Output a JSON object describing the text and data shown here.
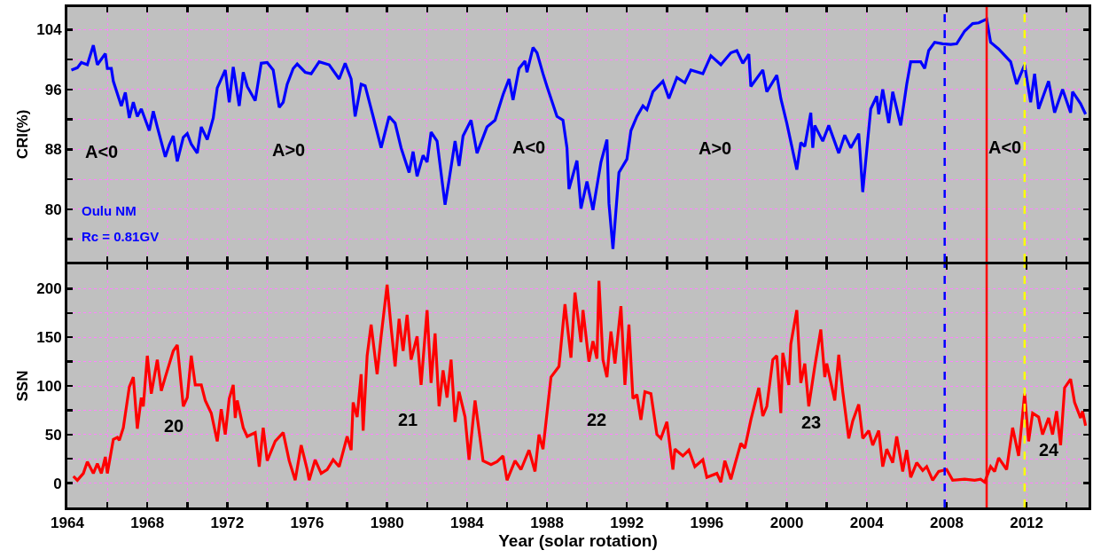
{
  "chart_data": [
    {
      "type": "line",
      "ylabel": "CRI(%)",
      "color": "#0000ff",
      "tick_labels": "y",
      "grid": true,
      "xlim": [
        1964,
        2015.1
      ],
      "ylim": [
        73,
        107
      ],
      "xticks": [
        1964,
        {
          "value": 1966,
          "label": null
        },
        1968,
        {
          "value": 1970,
          "label": null
        },
        1972,
        {
          "value": 1974,
          "label": null
        },
        1976,
        {
          "value": 1978,
          "label": null
        },
        1980,
        {
          "value": 1982,
          "label": null
        },
        1984,
        {
          "value": 1986,
          "label": null
        },
        1988,
        {
          "value": 1990,
          "label": null
        },
        1992,
        {
          "value": 1994,
          "label": null
        },
        1996,
        {
          "value": 1998,
          "label": null
        },
        2000,
        {
          "value": 2002,
          "label": null
        },
        2004,
        {
          "value": 2006,
          "label": null
        },
        2008,
        {
          "value": 2010,
          "label": null
        },
        2012,
        {
          "value": 2014,
          "label": null
        }
      ],
      "yticks": [
        {
          "value": 76,
          "label": null
        },
        80,
        {
          "value": 84,
          "label": null
        },
        88,
        {
          "value": 92,
          "label": null
        },
        96,
        {
          "value": 100,
          "label": null
        },
        104
      ],
      "x": [
        1964.2,
        1964.5,
        1964.7,
        1965.0,
        1965.3,
        1965.5,
        1965.9,
        1966.0,
        1966.2,
        1966.3,
        1966.7,
        1966.9,
        1967.1,
        1967.3,
        1967.5,
        1967.7,
        1968.1,
        1968.3,
        1968.5,
        1968.9,
        1969.1,
        1969.3,
        1969.5,
        1969.8,
        1970.0,
        1970.2,
        1970.5,
        1970.7,
        1971.0,
        1971.3,
        1971.5,
        1971.9,
        1972.1,
        1972.3,
        1972.6,
        1972.8,
        1973.0,
        1973.4,
        1973.7,
        1974.0,
        1974.3,
        1974.6,
        1974.8,
        1975.0,
        1975.3,
        1975.5,
        1975.9,
        1976.2,
        1976.6,
        1977.1,
        1977.6,
        1977.9,
        1978.2,
        1978.4,
        1978.7,
        1978.9,
        1979.3,
        1979.7,
        1980.1,
        1980.4,
        1980.7,
        1981.1,
        1981.3,
        1981.5,
        1981.8,
        1982.0,
        1982.2,
        1982.5,
        1982.9,
        1983.1,
        1983.4,
        1983.6,
        1983.8,
        1984.2,
        1984.5,
        1985.0,
        1985.4,
        1985.8,
        1986.1,
        1986.3,
        1986.6,
        1986.9,
        1987.0,
        1987.3,
        1987.5,
        1987.8,
        1988.0,
        1988.5,
        1988.8,
        1989.0,
        1989.1,
        1989.5,
        1989.7,
        1990.0,
        1990.3,
        1990.7,
        1991.0,
        1991.1,
        1991.3,
        1991.6,
        1992.0,
        1992.2,
        1992.5,
        1992.8,
        1993.0,
        1993.3,
        1993.8,
        1994.1,
        1994.5,
        1994.9,
        1995.2,
        1995.8,
        1996.2,
        1996.7,
        1997.2,
        1997.5,
        1997.8,
        1998.1,
        1998.2,
        1998.8,
        1999.0,
        1999.5,
        1999.7,
        2000.0,
        2000.5,
        2000.7,
        2000.9,
        2001.2,
        2001.3,
        2001.4,
        2001.8,
        2002.1,
        2002.6,
        2002.9,
        2003.2,
        2003.6,
        2003.8,
        2004.2,
        2004.5,
        2004.6,
        2004.8,
        2005.1,
        2005.3,
        2005.7,
        2006.0,
        2006.2,
        2006.7,
        2006.9,
        2007.1,
        2007.4,
        2007.8,
        2008.2,
        2008.5,
        2008.9,
        2009.3,
        2009.6,
        2010.0,
        2010.2,
        2010.6,
        2011.2,
        2011.5,
        2011.9,
        2012.2,
        2012.4,
        2012.6,
        2013.1,
        2013.4,
        2013.8,
        2014.2,
        2014.3,
        2014.7,
        2014.95
      ],
      "values": [
        98.6,
        98.9,
        99.6,
        99.3,
        101.9,
        99.3,
        100.8,
        98.8,
        98.8,
        97.1,
        93.8,
        95.6,
        92.2,
        94.3,
        92.4,
        93.4,
        90.5,
        93.1,
        91.0,
        87.0,
        88.6,
        89.8,
        86.4,
        89.6,
        90.1,
        88.7,
        87.5,
        91.0,
        89.3,
        92.2,
        96.2,
        98.6,
        94.3,
        99.0,
        93.8,
        98.3,
        96.4,
        94.5,
        99.5,
        99.6,
        98.6,
        93.6,
        94.3,
        96.7,
        98.8,
        99.4,
        98.3,
        98.1,
        99.7,
        99.3,
        97.4,
        99.5,
        97.4,
        92.4,
        96.7,
        96.5,
        92.4,
        88.2,
        92.4,
        91.5,
        88.2,
        84.9,
        87.7,
        84.4,
        87.2,
        86.3,
        90.3,
        89.1,
        80.6,
        83.9,
        89.1,
        85.8,
        89.8,
        91.9,
        87.5,
        91.0,
        91.9,
        95.3,
        97.4,
        94.6,
        98.8,
        99.8,
        98.3,
        101.6,
        100.9,
        98.1,
        96.4,
        92.4,
        91.9,
        88.2,
        82.7,
        86.5,
        80.1,
        83.7,
        79.9,
        86.3,
        89.3,
        80.8,
        74.7,
        84.9,
        86.7,
        90.5,
        92.4,
        93.8,
        93.3,
        95.7,
        97.1,
        94.8,
        97.6,
        96.9,
        98.6,
        98.1,
        100.5,
        99.3,
        100.9,
        101.2,
        99.5,
        100.7,
        96.4,
        98.6,
        95.7,
        97.9,
        94.8,
        91.5,
        85.3,
        88.9,
        88.4,
        92.9,
        88.2,
        91.2,
        89.1,
        91.2,
        87.5,
        89.9,
        88.2,
        90.1,
        82.3,
        93.4,
        95.1,
        92.7,
        96.0,
        91.5,
        95.7,
        91.2,
        96.7,
        99.7,
        99.7,
        98.8,
        101.2,
        102.3,
        102.1,
        102.0,
        102.1,
        103.8,
        104.8,
        104.9,
        105.4,
        102.3,
        101.4,
        99.7,
        96.7,
        99.3,
        94.3,
        98.1,
        93.4,
        97.1,
        92.9,
        96.0,
        92.9,
        95.7,
        94.1,
        92.7
      ],
      "annotations": [
        "A<0",
        "A>0",
        "A<0",
        "A>0",
        "A<0",
        "Oulu NM",
        "Rc = 0.81GV"
      ],
      "ref_lines": [
        {
          "axis": "x",
          "value": 2007.9,
          "color": "#0000ff",
          "line_style": "dashed"
        },
        {
          "axis": "x",
          "value": 2010,
          "color": "#ff0000",
          "line_style": "solid"
        },
        {
          "axis": "x",
          "value": 2011.9,
          "color": "#ffff00",
          "line_style": "dashed"
        }
      ]
    },
    {
      "type": "line",
      "ylabel": "SSN",
      "xlabel": "Year (solar rotation)",
      "color": "#ff0000",
      "grid": true,
      "xlim": [
        1964,
        2015.1
      ],
      "ylim": [
        -25,
        225
      ],
      "xticks": [
        1964,
        {
          "value": 1966,
          "label": null
        },
        1968,
        {
          "value": 1970,
          "label": null
        },
        1972,
        {
          "value": 1974,
          "label": null
        },
        1976,
        {
          "value": 1978,
          "label": null
        },
        1980,
        {
          "value": 1982,
          "label": null
        },
        1984,
        {
          "value": 1986,
          "label": null
        },
        1988,
        {
          "value": 1990,
          "label": null
        },
        1992,
        {
          "value": 1994,
          "label": null
        },
        1996,
        {
          "value": 1998,
          "label": null
        },
        2000,
        {
          "value": 2002,
          "label": null
        },
        2004,
        {
          "value": 2006,
          "label": null
        },
        2008,
        {
          "value": 2010,
          "label": null
        },
        2012,
        {
          "value": 2014,
          "label": null
        }
      ],
      "yticks": [
        0,
        {
          "value": 25,
          "label": null
        },
        50,
        {
          "value": 75,
          "label": null
        },
        100,
        {
          "value": 125,
          "label": null
        },
        150,
        {
          "value": 175,
          "label": null
        },
        200
      ],
      "x": [
        1964.3,
        1964.5,
        1964.8,
        1965.0,
        1965.3,
        1965.5,
        1965.7,
        1965.9,
        1966.0,
        1966.3,
        1966.5,
        1966.6,
        1966.8,
        1967.1,
        1967.3,
        1967.5,
        1967.7,
        1967.8,
        1968.0,
        1968.2,
        1968.5,
        1968.7,
        1968.9,
        1969.3,
        1969.5,
        1969.8,
        1970.0,
        1970.2,
        1970.4,
        1970.7,
        1970.9,
        1971.2,
        1971.5,
        1971.7,
        1971.9,
        1972.1,
        1972.3,
        1972.4,
        1972.5,
        1972.8,
        1973.0,
        1973.4,
        1973.6,
        1973.8,
        1974.0,
        1974.4,
        1974.8,
        1975.1,
        1975.4,
        1975.7,
        1976.0,
        1976.1,
        1976.4,
        1976.7,
        1977.0,
        1977.3,
        1977.6,
        1978.0,
        1978.2,
        1978.3,
        1978.5,
        1978.7,
        1978.8,
        1979.0,
        1979.2,
        1979.5,
        1979.7,
        1980.0,
        1980.2,
        1980.4,
        1980.6,
        1980.8,
        1981.0,
        1981.2,
        1981.5,
        1981.7,
        1982.0,
        1982.2,
        1982.4,
        1982.6,
        1982.8,
        1983.0,
        1983.2,
        1983.4,
        1983.6,
        1983.9,
        1984.1,
        1984.4,
        1984.6,
        1984.8,
        1985.2,
        1985.5,
        1985.8,
        1986.0,
        1986.4,
        1986.7,
        1987.1,
        1987.4,
        1987.6,
        1987.8,
        1988.2,
        1988.6,
        1988.9,
        1989.2,
        1989.4,
        1989.7,
        1989.8,
        1990.1,
        1990.3,
        1990.5,
        1990.6,
        1990.8,
        1991.0,
        1991.2,
        1991.4,
        1991.7,
        1991.9,
        1992.1,
        1992.3,
        1992.5,
        1992.7,
        1992.9,
        1993.2,
        1993.5,
        1993.7,
        1994.0,
        1994.3,
        1994.4,
        1994.8,
        1995.1,
        1995.4,
        1995.8,
        1996.0,
        1996.5,
        1996.7,
        1996.9,
        1997.2,
        1997.4,
        1997.7,
        1997.9,
        1998.2,
        1998.6,
        1998.8,
        1999.0,
        1999.3,
        1999.5,
        1999.7,
        1999.8,
        2000.1,
        2000.2,
        2000.5,
        2000.7,
        2000.9,
        2001.1,
        2001.4,
        2001.7,
        2001.9,
        2002.0,
        2002.4,
        2002.6,
        2002.8,
        2003.1,
        2003.3,
        2003.6,
        2003.8,
        2004.1,
        2004.3,
        2004.6,
        2004.8,
        2005.0,
        2005.3,
        2005.5,
        2005.8,
        2006.0,
        2006.2,
        2006.5,
        2006.8,
        2007.0,
        2007.3,
        2007.6,
        2008.0,
        2008.3,
        2008.9,
        2009.4,
        2009.7,
        2009.9,
        2010.2,
        2010.4,
        2010.6,
        2011.0,
        2011.3,
        2011.6,
        2011.9,
        2012.1,
        2012.3,
        2012.6,
        2012.8,
        2013.1,
        2013.3,
        2013.5,
        2013.7,
        2013.9,
        2014.2,
        2014.4,
        2014.7,
        2014.8,
        2014.95
      ],
      "values": [
        7,
        3,
        10,
        22,
        10,
        20,
        10,
        27,
        10,
        45,
        47,
        44,
        57,
        99,
        109,
        56,
        88,
        79,
        131,
        92,
        127,
        95,
        109,
        136,
        142,
        79,
        88,
        131,
        101,
        101,
        85,
        72,
        43,
        76,
        50,
        87,
        101,
        67,
        85,
        57,
        48,
        52,
        17,
        57,
        23,
        43,
        52,
        23,
        3,
        39,
        14,
        3,
        24,
        10,
        14,
        24,
        17,
        48,
        34,
        83,
        68,
        112,
        54,
        131,
        163,
        112,
        151,
        204,
        160,
        120,
        169,
        136,
        173,
        127,
        151,
        101,
        178,
        103,
        154,
        79,
        116,
        88,
        127,
        63,
        94,
        68,
        24,
        85,
        54,
        23,
        19,
        22,
        28,
        3,
        23,
        14,
        34,
        12,
        50,
        35,
        109,
        120,
        184,
        129,
        196,
        145,
        178,
        125,
        146,
        128,
        208,
        127,
        109,
        156,
        123,
        182,
        101,
        163,
        87,
        91,
        65,
        94,
        92,
        50,
        46,
        63,
        14,
        35,
        28,
        34,
        17,
        24,
        6,
        10,
        1,
        23,
        4,
        19,
        41,
        36,
        65,
        98,
        69,
        79,
        127,
        131,
        72,
        134,
        101,
        143,
        178,
        103,
        123,
        79,
        120,
        158,
        109,
        123,
        85,
        132,
        94,
        46,
        64,
        81,
        46,
        54,
        39,
        54,
        17,
        35,
        21,
        48,
        12,
        34,
        6,
        21,
        13,
        17,
        3,
        12,
        14,
        3,
        4,
        3,
        4,
        1,
        17,
        12,
        26,
        14,
        57,
        28,
        92,
        43,
        72,
        68,
        50,
        67,
        50,
        74,
        39,
        98,
        107,
        83,
        67,
        74,
        59
      ],
      "annotations": [
        "20",
        "21",
        "22",
        "23",
        "24"
      ],
      "ref_lines": [
        {
          "axis": "x",
          "value": 2007.9,
          "color": "#0000ff",
          "line_style": "dashed"
        },
        {
          "axis": "x",
          "value": 2010,
          "color": "#ff0000",
          "line_style": "solid"
        },
        {
          "axis": "x",
          "value": 2011.9,
          "color": "#ffff00",
          "line_style": "dashed"
        }
      ]
    }
  ]
}
